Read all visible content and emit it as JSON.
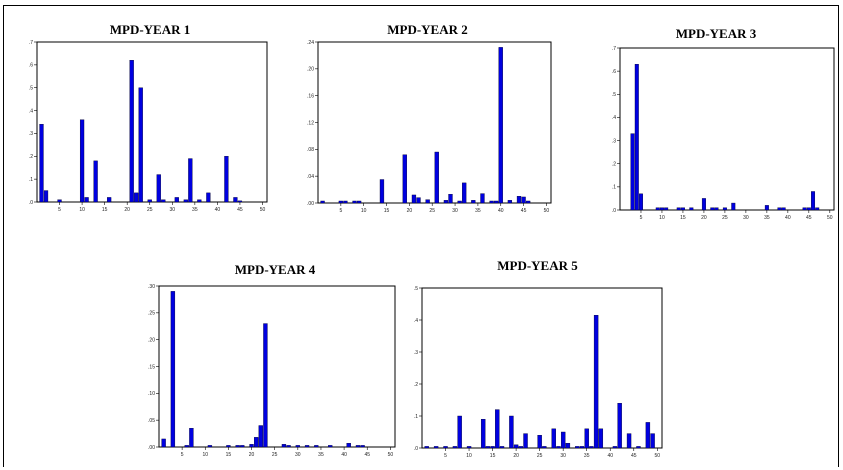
{
  "chart_data": [
    {
      "type": "bar",
      "title": "MPD-YEAR 1",
      "xlim": [
        0,
        51
      ],
      "ylim": [
        0,
        0.7
      ],
      "xticks": [
        "5",
        "10",
        "15",
        "20",
        "25",
        "30",
        "35",
        "40",
        "45",
        "50"
      ],
      "yticks": [
        ".0",
        ".1",
        ".2",
        ".3",
        ".4",
        ".5",
        ".6",
        ".7"
      ],
      "series": [
        {
          "x": [
            1,
            2,
            5,
            10,
            11,
            13,
            16,
            21,
            22,
            23,
            25,
            27,
            28,
            31,
            33,
            34,
            36,
            38,
            42,
            44,
            45
          ],
          "values": [
            0.34,
            0.05,
            0.01,
            0.36,
            0.02,
            0.18,
            0.02,
            0.62,
            0.04,
            0.5,
            0.01,
            0.12,
            0.01,
            0.02,
            0.01,
            0.19,
            0.01,
            0.04,
            0.2,
            0.02,
            0.005
          ],
          "color": "#0000e0"
        }
      ]
    },
    {
      "type": "bar",
      "title": "MPD-YEAR 2",
      "xlim": [
        0,
        51
      ],
      "ylim": [
        0,
        0.24
      ],
      "xticks": [
        "5",
        "10",
        "15",
        "20",
        "25",
        "30",
        "35",
        "40",
        "45",
        "50"
      ],
      "yticks": [
        ".00",
        ".04",
        ".08",
        ".12",
        ".16",
        ".20",
        ".24"
      ],
      "series": [
        {
          "x": [
            1,
            5,
            6,
            8,
            9,
            14,
            19,
            21,
            22,
            24,
            26,
            28,
            29,
            31,
            32,
            34,
            36,
            38,
            39,
            40,
            42,
            44,
            45,
            46
          ],
          "values": [
            0.003,
            0.003,
            0.003,
            0.003,
            0.003,
            0.035,
            0.072,
            0.012,
            0.008,
            0.005,
            0.076,
            0.004,
            0.013,
            0.003,
            0.03,
            0.004,
            0.014,
            0.003,
            0.003,
            0.232,
            0.004,
            0.01,
            0.009,
            0.003
          ],
          "color": "#0000e0"
        }
      ]
    },
    {
      "type": "bar",
      "title": "MPD-YEAR 3",
      "xlim": [
        0,
        51
      ],
      "ylim": [
        0,
        0.7
      ],
      "xticks": [
        "5",
        "10",
        "15",
        "20",
        "25",
        "30",
        "35",
        "40",
        "45",
        "50"
      ],
      "yticks": [
        ".0",
        ".1",
        ".2",
        ".3",
        ".4",
        ".5",
        ".6",
        ".7"
      ],
      "series": [
        {
          "x": [
            3,
            4,
            5,
            9,
            10,
            11,
            14,
            15,
            17,
            20,
            22,
            23,
            25,
            27,
            35,
            38,
            39,
            44,
            45,
            46,
            47
          ],
          "values": [
            0.33,
            0.63,
            0.07,
            0.01,
            0.01,
            0.01,
            0.01,
            0.01,
            0.01,
            0.05,
            0.01,
            0.01,
            0.01,
            0.03,
            0.02,
            0.01,
            0.01,
            0.01,
            0.01,
            0.08,
            0.01
          ],
          "color": "#0000e0"
        }
      ]
    },
    {
      "type": "bar",
      "title": "MPD-YEAR 4",
      "xlim": [
        0,
        51
      ],
      "ylim": [
        0,
        0.3
      ],
      "xticks": [
        "5",
        "10",
        "15",
        "20",
        "25",
        "30",
        "35",
        "40",
        "45",
        "50"
      ],
      "yticks": [
        ".00",
        ".05",
        ".10",
        ".15",
        ".20",
        ".25",
        ".30"
      ],
      "series": [
        {
          "x": [
            1,
            3,
            6,
            7,
            11,
            15,
            17,
            18,
            20,
            21,
            22,
            23,
            27,
            28,
            30,
            32,
            34,
            37,
            41,
            43,
            44
          ],
          "values": [
            0.015,
            0.29,
            0.003,
            0.035,
            0.003,
            0.003,
            0.003,
            0.003,
            0.005,
            0.018,
            0.04,
            0.23,
            0.005,
            0.003,
            0.003,
            0.003,
            0.003,
            0.003,
            0.007,
            0.003,
            0.003
          ],
          "color": "#0000e0"
        }
      ]
    },
    {
      "type": "bar",
      "title": "MPD-YEAR 5",
      "xlim": [
        0,
        51
      ],
      "ylim": [
        0,
        0.5
      ],
      "xticks": [
        "5",
        "10",
        "15",
        "20",
        "25",
        "30",
        "35",
        "40",
        "45",
        "50"
      ],
      "yticks": [
        ".0",
        ".1",
        ".2",
        ".3",
        ".4",
        ".5"
      ],
      "series": [
        {
          "x": [
            1,
            3,
            5,
            7,
            8,
            10,
            13,
            14,
            15,
            16,
            17,
            19,
            20,
            21,
            22,
            25,
            26,
            28,
            29,
            30,
            31,
            33,
            34,
            35,
            36,
            37,
            38,
            41,
            42,
            44,
            46,
            48,
            49
          ],
          "values": [
            0.005,
            0.005,
            0.005,
            0.005,
            0.1,
            0.005,
            0.09,
            0.005,
            0.005,
            0.12,
            0.005,
            0.1,
            0.01,
            0.005,
            0.045,
            0.04,
            0.005,
            0.06,
            0.005,
            0.05,
            0.015,
            0.005,
            0.005,
            0.06,
            0.005,
            0.415,
            0.06,
            0.005,
            0.14,
            0.045,
            0.005,
            0.08,
            0.045
          ],
          "color": "#0000e0"
        }
      ]
    }
  ]
}
